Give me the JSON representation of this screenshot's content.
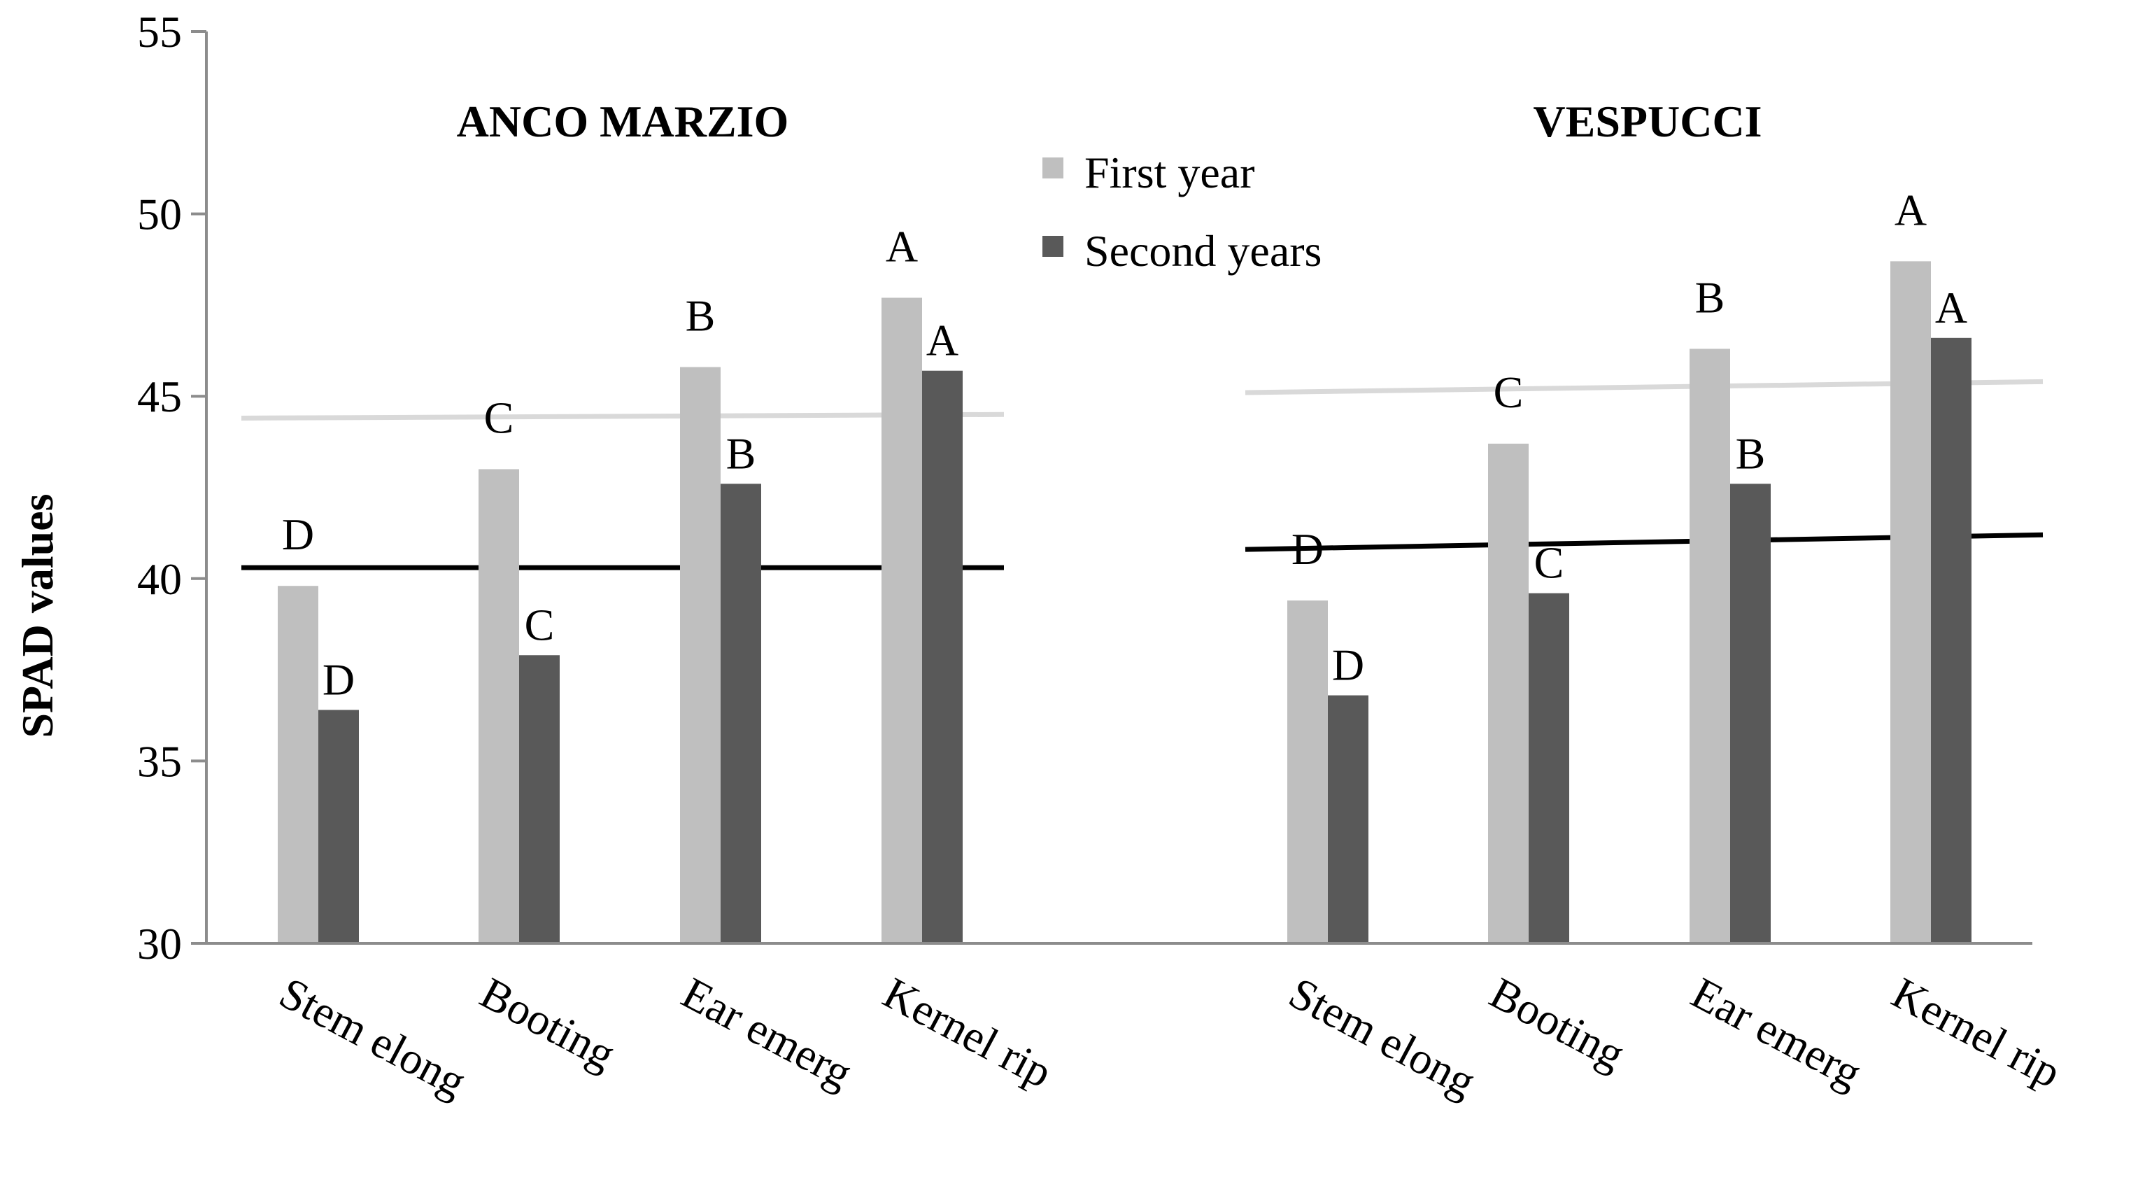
{
  "chart_data": {
    "type": "bar",
    "ylabel": "SPAD values",
    "ylim": [
      30,
      55
    ],
    "yticks": [
      30,
      35,
      40,
      45,
      50,
      55
    ],
    "legend_position": "top-center",
    "grid": false,
    "series": [
      {
        "name": "First year",
        "color": "#bfbfbf"
      },
      {
        "name": "Second years",
        "color": "#595959"
      }
    ],
    "groups": [
      {
        "title": "ANCO MARZIO",
        "categories": [
          "Stem elong",
          "Booting",
          "Ear emerg",
          "Kernel rip"
        ],
        "values": [
          [
            39.8,
            43.0,
            45.8,
            47.7
          ],
          [
            36.4,
            37.9,
            42.6,
            45.7
          ]
        ],
        "labels": [
          [
            "D",
            "C",
            "B",
            "A"
          ],
          [
            "D",
            "C",
            "B",
            "A"
          ]
        ],
        "trendlines": [
          {
            "series": "First year",
            "y_start": 44.4,
            "y_end": 44.5,
            "color": "#d9d9d9"
          },
          {
            "series": "Second years",
            "y_start": 40.3,
            "y_end": 40.3,
            "color": "#000000"
          }
        ]
      },
      {
        "title": "VESPUCCI",
        "categories": [
          "Stem elong",
          "Booting",
          "Ear emerg",
          "Kernel rip"
        ],
        "values": [
          [
            39.4,
            43.7,
            46.3,
            48.7
          ],
          [
            36.8,
            39.6,
            42.6,
            46.6
          ]
        ],
        "labels": [
          [
            "D",
            "C",
            "B",
            "A"
          ],
          [
            "D",
            "C",
            "B",
            "A"
          ]
        ],
        "trendlines": [
          {
            "series": "First year",
            "y_start": 45.1,
            "y_end": 45.4,
            "color": "#d9d9d9"
          },
          {
            "series": "Second years",
            "y_start": 40.8,
            "y_end": 41.2,
            "color": "#000000"
          }
        ]
      }
    ]
  }
}
